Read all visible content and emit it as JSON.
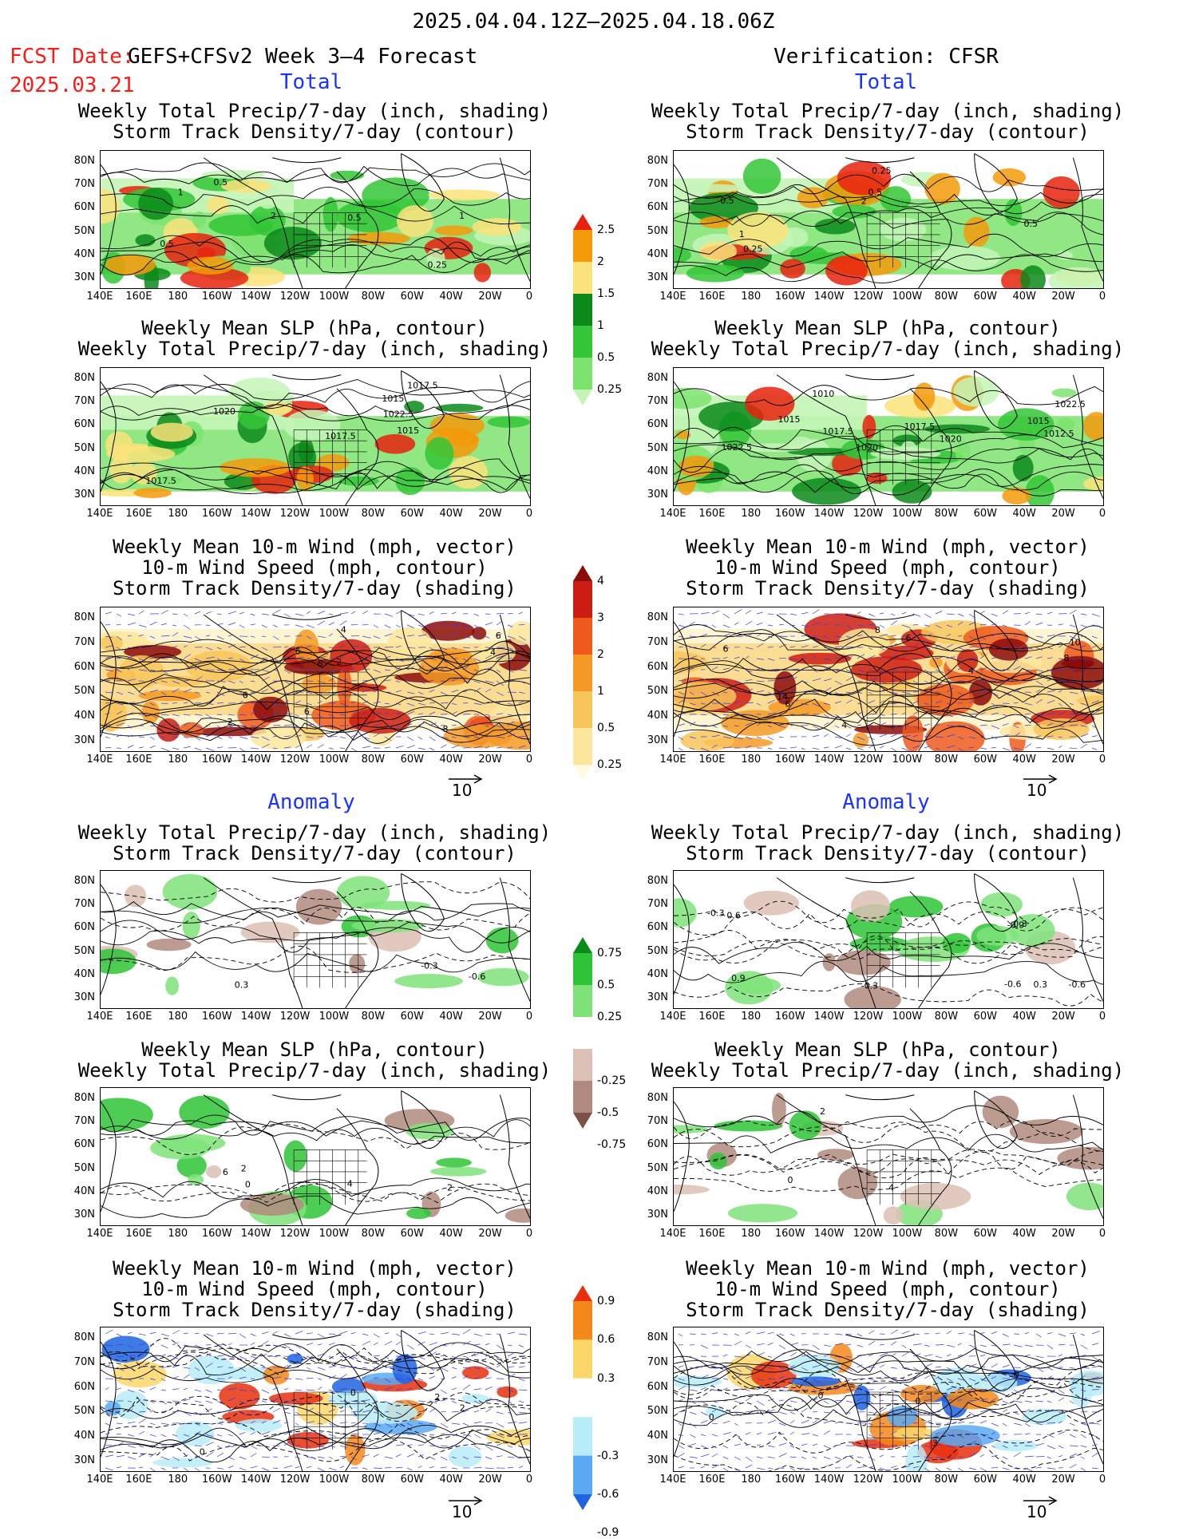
{
  "header": {
    "period": "2025.04.04.12Z–2025.04.18.06Z",
    "fcst_label": "FCST Date:",
    "fcst_date": "2025.03.21",
    "model": "GEFS+CFSv2 Week 3–4 Forecast",
    "verification": "Verification: CFSR"
  },
  "sections": {
    "total": "Total",
    "anomaly": "Anomaly"
  },
  "titles": {
    "precip_storm": [
      "Weekly Total Precip/7-day (inch, shading)",
      "Storm Track Density/7-day (contour)"
    ],
    "slp_precip": [
      "Weekly Mean SLP (hPa, contour)",
      "Weekly Total Precip/7-day (inch, shading)"
    ],
    "wind_storm": [
      "Weekly Mean 10-m Wind (mph, vector)",
      "10-m Wind Speed (mph, contour)",
      "Storm Track Density/7-day (shading)"
    ]
  },
  "axes": {
    "lat_labels": [
      "80N",
      "70N",
      "60N",
      "50N",
      "40N",
      "30N"
    ],
    "lon_labels": [
      "140E",
      "160E",
      "180",
      "160W",
      "140W",
      "120W",
      "100W",
      "80W",
      "60W",
      "40W",
      "20W",
      "0"
    ]
  },
  "vector_ref": "10",
  "colorbars": {
    "precip_total": {
      "labels": [
        "2.5",
        "2",
        "1.5",
        "1",
        "0.5",
        "0.25"
      ],
      "colors": [
        "#e8220e",
        "#f59a0a",
        "#fbe27a",
        "#0b8a1a",
        "#34c637",
        "#7ce36e",
        "#c4f5b7"
      ]
    },
    "storm_total": {
      "labels": [
        "4",
        "3",
        "2",
        "1",
        "0.5",
        "0.25"
      ],
      "colors": [
        "#8b0a0a",
        "#cc1d12",
        "#ef5a1c",
        "#f49a24",
        "#f8c55a",
        "#fbe79c",
        "#fffbe0"
      ]
    },
    "precip_anom": {
      "labels": [
        "0.75",
        "0.5",
        "0.25",
        "-0.25",
        "-0.5",
        "-0.75"
      ],
      "colors": [
        "#0a8a1a",
        "#2fc437",
        "#7fe37a",
        "#ffffff",
        "#dcbfb5",
        "#b08a7e",
        "#7a5145"
      ]
    },
    "storm_anom": {
      "labels": [
        "0.9",
        "0.6",
        "0.3",
        "-0.3",
        "-0.6",
        "-0.9"
      ],
      "colors": [
        "#e8300e",
        "#f5881a",
        "#fbd76a",
        "#ffffff",
        "#b8ecf8",
        "#5aa9f2",
        "#1f63e0"
      ]
    }
  },
  "panels": {
    "fc_total_precip_storm": {
      "contour_labels": [
        "0.5",
        "1",
        "2",
        "0.25",
        "0.5",
        "1",
        "0.5"
      ]
    },
    "ob_total_precip_storm": {
      "contour_labels": [
        "2",
        "0.5",
        "0.25",
        "0.5",
        "1",
        "0.5",
        "0.25"
      ]
    },
    "fc_total_slp": {
      "contour_labels": [
        "1017.5",
        "1020",
        "1022.5",
        "1015",
        "1017.5",
        "1015",
        "1017.5"
      ]
    },
    "ob_total_slp": {
      "contour_labels": [
        "1022.5",
        "1015",
        "1020",
        "1017.5",
        "1017.5",
        "1020",
        "1012.5",
        "1015",
        "1010",
        "1022.5"
      ]
    },
    "fc_total_wind": {
      "contour_labels": [
        "2",
        "4",
        "6",
        "2",
        "4",
        "6",
        "6",
        "6",
        "8",
        "6"
      ]
    },
    "ob_total_wind": {
      "contour_labels": [
        "8",
        "6",
        "4",
        "14",
        "10",
        "6",
        "4",
        "8",
        "6"
      ]
    },
    "fc_anom_precip": {
      "contour_labels": [
        "-0.3",
        "-0.6",
        "0.3"
      ]
    },
    "ob_anom_precip": {
      "contour_labels": [
        "-0.6",
        "0.3",
        "-0.3",
        "0.9",
        "-0.3",
        "-0.6",
        "0.3",
        "0.6",
        "-0.9"
      ]
    },
    "fc_anom_slp": {
      "contour_labels": [
        "2",
        "6",
        "4",
        "0",
        "2"
      ]
    },
    "ob_anom_slp": {
      "contour_labels": [
        "4",
        "0",
        "2"
      ]
    },
    "fc_anom_wind": {
      "contour_labels": [
        "2",
        "0",
        "2",
        "0"
      ]
    },
    "ob_anom_wind": {
      "contour_labels": [
        "0",
        "0",
        "3",
        "0",
        "0"
      ]
    }
  }
}
